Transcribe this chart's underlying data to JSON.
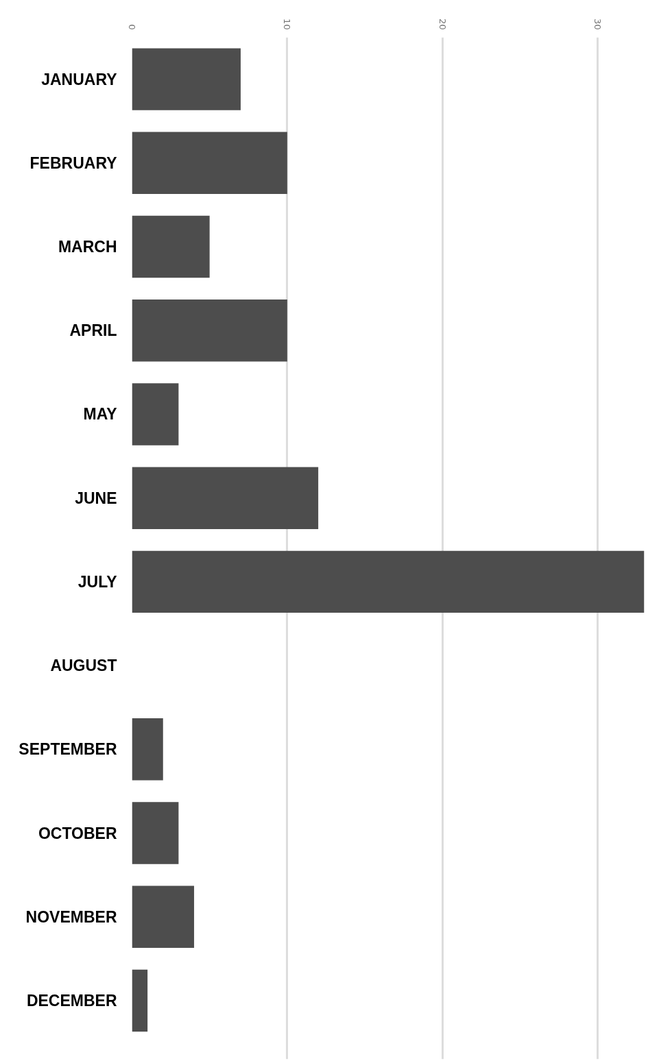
{
  "chart_data": {
    "type": "bar",
    "orientation": "horizontal",
    "categories": [
      "JANUARY",
      "FEBRUARY",
      "MARCH",
      "APRIL",
      "MAY",
      "JUNE",
      "JULY",
      "AUGUST",
      "SEPTEMBER",
      "OCTOBER",
      "NOVEMBER",
      "DECEMBER"
    ],
    "values": [
      7,
      10,
      5,
      10,
      3,
      12,
      33,
      0,
      2,
      3,
      4,
      1
    ],
    "color": "#4d4d4d",
    "xlim": [
      0,
      33
    ],
    "xticks": [
      0,
      10,
      20,
      30
    ],
    "grid": "x"
  }
}
